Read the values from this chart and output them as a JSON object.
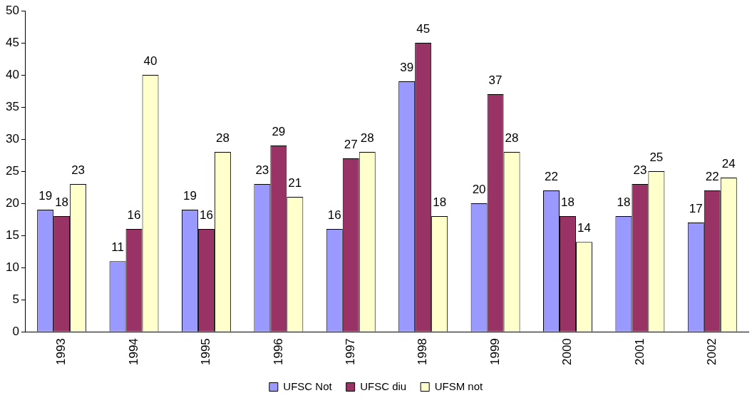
{
  "chart_data": {
    "type": "bar",
    "categories": [
      "1993",
      "1994",
      "1995",
      "1996",
      "1997",
      "1998",
      "1999",
      "2000",
      "2001",
      "2002"
    ],
    "series": [
      {
        "name": "UFSC Not",
        "color": "#9999ff",
        "values": [
          19,
          11,
          19,
          23,
          16,
          39,
          20,
          22,
          18,
          17
        ]
      },
      {
        "name": "UFSC diu",
        "color": "#993366",
        "values": [
          18,
          16,
          16,
          29,
          27,
          45,
          37,
          18,
          23,
          22
        ]
      },
      {
        "name": "UFSM not",
        "color": "#ffffcc",
        "values": [
          23,
          40,
          28,
          21,
          28,
          18,
          28,
          14,
          25,
          24
        ]
      }
    ],
    "ylim": [
      0,
      50
    ],
    "yticks": [
      0,
      5,
      10,
      15,
      20,
      25,
      30,
      35,
      40,
      45,
      50
    ],
    "grid": false,
    "legend": "bottom",
    "data_labels": true
  }
}
